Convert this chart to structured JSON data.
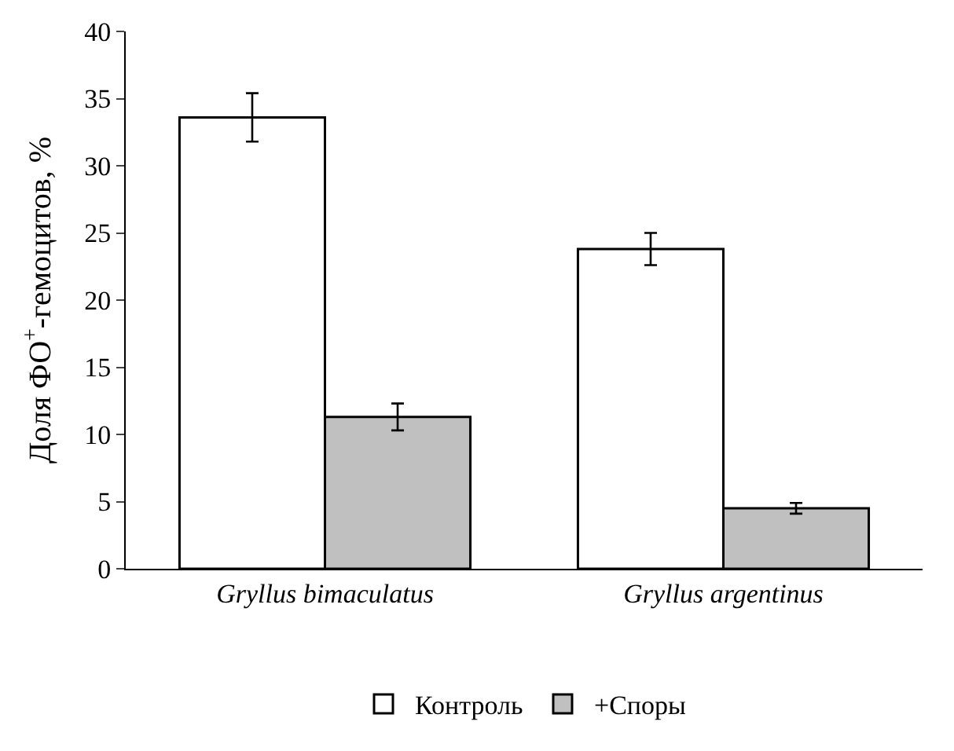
{
  "chart_data": {
    "type": "bar",
    "ylabel": "Доля ФО$^{+}$-гемоцитов, %",
    "categories": [
      "Gryllus bimaculatus",
      "Gryllus argentinus"
    ],
    "series": [
      {
        "name": "Контроль",
        "color": "#ffffff",
        "values": [
          33.6,
          23.8
        ],
        "errors": [
          1.8,
          1.2
        ]
      },
      {
        "name": "+Споры",
        "color": "#c0c0c0",
        "values": [
          11.3,
          4.5
        ],
        "errors": [
          1.0,
          0.4
        ]
      }
    ],
    "ylim": [
      0,
      40
    ],
    "yticks": [
      0,
      5,
      10,
      15,
      20,
      25,
      30,
      35,
      40
    ],
    "grid": false,
    "legend": "bottom"
  }
}
